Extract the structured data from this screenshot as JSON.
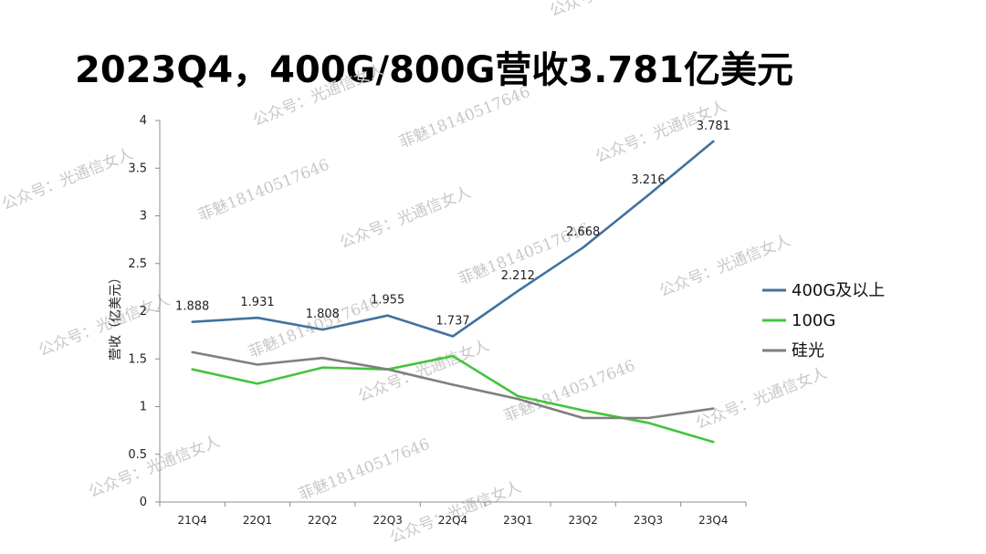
{
  "title": "2023Q4，400G/800G营收3.781亿美元",
  "chart_data": {
    "type": "line",
    "categories": [
      "21Q4",
      "22Q1",
      "22Q2",
      "22Q3",
      "22Q4",
      "23Q1",
      "23Q2",
      "23Q3",
      "23Q4"
    ],
    "ylabel": "营收（亿美元）",
    "xlabel": "",
    "ylim": [
      0,
      4
    ],
    "yticks": [
      "0",
      "0.5",
      "1",
      "1.5",
      "2",
      "2.5",
      "3",
      "3.5",
      "4"
    ],
    "grid": false,
    "legend_position": "right",
    "series": [
      {
        "name": "400G及以上",
        "color": "#41729e",
        "values": [
          1.888,
          1.931,
          1.808,
          1.955,
          1.737,
          2.212,
          2.668,
          3.216,
          3.781
        ],
        "labels": [
          "1.888",
          "1.931",
          "1.808",
          "1.955",
          "1.737",
          "2.212",
          "2.668",
          "3.216",
          "3.781"
        ]
      },
      {
        "name": "100G",
        "color": "#44c43c",
        "values": [
          1.39,
          1.24,
          1.41,
          1.39,
          1.53,
          1.11,
          0.96,
          0.83,
          0.63
        ]
      },
      {
        "name": "硅光",
        "color": "#7f7f7f",
        "values": [
          1.57,
          1.44,
          1.51,
          1.39,
          1.23,
          1.08,
          0.88,
          0.88,
          0.98
        ]
      }
    ]
  },
  "watermarks": [
    "公众号：光通信女人",
    "菲魅18140517646"
  ]
}
